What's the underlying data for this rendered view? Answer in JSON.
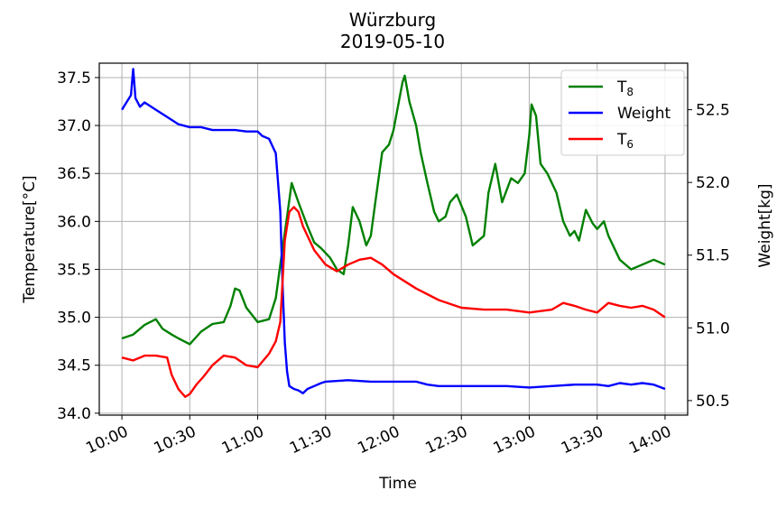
{
  "chart_data": {
    "type": "line",
    "title": "Würzburg",
    "subtitle": "2019-05-10",
    "xlabel": "Time",
    "ylabel_left": "Temperature[°C]",
    "ylabel_right": "Weight[kg]",
    "x_ticks": [
      "10:00",
      "10:30",
      "11:00",
      "11:30",
      "12:00",
      "12:30",
      "13:00",
      "13:30",
      "14:00"
    ],
    "xlim_minutes_after_10_00": [
      -10,
      250
    ],
    "ylim_left": [
      33.98,
      37.65
    ],
    "ylim_right": [
      50.4,
      52.82
    ],
    "y_ticks_left": [
      "34.0",
      "34.5",
      "35.0",
      "35.5",
      "36.0",
      "36.5",
      "37.0",
      "37.5"
    ],
    "y_ticks_right": [
      "50.5",
      "51.0",
      "51.5",
      "52.0",
      "52.5"
    ],
    "grid": true,
    "legend_position": "top-right",
    "series": [
      {
        "name": "T",
        "subscript": "8",
        "color": "#008000",
        "axis": "left",
        "x": [
          "10:00",
          "10:05",
          "10:10",
          "10:15",
          "10:18",
          "10:22",
          "10:25",
          "10:30",
          "10:35",
          "10:40",
          "10:45",
          "10:48",
          "10:50",
          "10:52",
          "10:55",
          "11:00",
          "11:05",
          "11:08",
          "11:10",
          "11:13",
          "11:15",
          "11:18",
          "11:22",
          "11:25",
          "11:28",
          "11:32",
          "11:35",
          "11:38",
          "11:40",
          "11:42",
          "11:45",
          "11:48",
          "11:50",
          "11:52",
          "11:55",
          "11:58",
          "12:00",
          "12:02",
          "12:04",
          "12:05",
          "12:07",
          "12:10",
          "12:12",
          "12:15",
          "12:18",
          "12:20",
          "12:23",
          "12:25",
          "12:28",
          "12:32",
          "12:35",
          "12:40",
          "12:42",
          "12:45",
          "12:48",
          "12:52",
          "12:55",
          "12:58",
          "13:00",
          "13:01",
          "13:03",
          "13:05",
          "13:08",
          "13:12",
          "13:15",
          "13:18",
          "13:20",
          "13:22",
          "13:25",
          "13:28",
          "13:30",
          "13:33",
          "13:35",
          "13:40",
          "13:45",
          "13:50",
          "13:55",
          "14:00"
        ],
        "values": [
          34.78,
          34.82,
          34.92,
          34.98,
          34.88,
          34.82,
          34.78,
          34.72,
          34.85,
          34.93,
          34.95,
          35.12,
          35.3,
          35.28,
          35.1,
          34.95,
          34.98,
          35.2,
          35.55,
          36.05,
          36.4,
          36.2,
          35.95,
          35.78,
          35.72,
          35.62,
          35.5,
          35.45,
          35.75,
          36.15,
          36.0,
          35.75,
          35.85,
          36.2,
          36.72,
          36.8,
          36.95,
          37.2,
          37.45,
          37.52,
          37.25,
          37.0,
          36.72,
          36.4,
          36.1,
          36.0,
          36.05,
          36.2,
          36.28,
          36.05,
          35.75,
          35.85,
          36.3,
          36.6,
          36.2,
          36.45,
          36.4,
          36.5,
          36.9,
          37.22,
          37.1,
          36.6,
          36.5,
          36.3,
          36.0,
          35.85,
          35.9,
          35.8,
          36.12,
          35.98,
          35.92,
          36.0,
          35.85,
          35.6,
          35.5,
          35.55,
          35.6,
          35.55
        ]
      },
      {
        "name": "Weight",
        "color": "#0000ff",
        "axis": "right",
        "x": [
          "10:00",
          "10:02",
          "10:04",
          "10:05",
          "10:06",
          "10:07",
          "10:08",
          "10:10",
          "10:15",
          "10:20",
          "10:25",
          "10:30",
          "10:35",
          "10:40",
          "10:45",
          "10:50",
          "10:55",
          "11:00",
          "11:02",
          "11:05",
          "11:08",
          "11:10",
          "11:11",
          "11:12",
          "11:13",
          "11:14",
          "11:16",
          "11:18",
          "11:20",
          "11:22",
          "11:25",
          "11:28",
          "11:30",
          "11:40",
          "11:50",
          "12:00",
          "12:10",
          "12:15",
          "12:20",
          "12:25",
          "12:30",
          "12:40",
          "12:50",
          "13:00",
          "13:10",
          "13:20",
          "13:30",
          "13:35",
          "13:40",
          "13:45",
          "13:50",
          "13:55",
          "14:00"
        ],
        "values": [
          52.5,
          52.55,
          52.6,
          52.78,
          52.58,
          52.55,
          52.52,
          52.55,
          52.5,
          52.45,
          52.4,
          52.38,
          52.38,
          52.36,
          52.36,
          52.36,
          52.35,
          52.35,
          52.32,
          52.3,
          52.2,
          51.8,
          51.3,
          50.9,
          50.7,
          50.6,
          50.58,
          50.57,
          50.55,
          50.58,
          50.6,
          50.62,
          50.63,
          50.64,
          50.63,
          50.63,
          50.63,
          50.61,
          50.6,
          50.6,
          50.6,
          50.6,
          50.6,
          50.59,
          50.6,
          50.61,
          50.61,
          50.6,
          50.62,
          50.61,
          50.62,
          50.61,
          50.58
        ]
      },
      {
        "name": "T",
        "subscript": "6",
        "color": "#ff0000",
        "axis": "left",
        "x": [
          "10:00",
          "10:05",
          "10:10",
          "10:15",
          "10:20",
          "10:22",
          "10:25",
          "10:28",
          "10:30",
          "10:33",
          "10:36",
          "10:40",
          "10:45",
          "10:50",
          "10:55",
          "11:00",
          "11:05",
          "11:08",
          "11:10",
          "11:12",
          "11:14",
          "11:16",
          "11:18",
          "11:20",
          "11:25",
          "11:30",
          "11:35",
          "11:40",
          "11:45",
          "11:50",
          "11:55",
          "12:00",
          "12:10",
          "12:20",
          "12:30",
          "12:40",
          "12:50",
          "13:00",
          "13:10",
          "13:15",
          "13:20",
          "13:25",
          "13:30",
          "13:35",
          "13:40",
          "13:45",
          "13:50",
          "13:55",
          "14:00"
        ],
        "values": [
          34.58,
          34.55,
          34.6,
          34.6,
          34.58,
          34.4,
          34.25,
          34.17,
          34.2,
          34.3,
          34.38,
          34.5,
          34.6,
          34.58,
          34.5,
          34.48,
          34.62,
          34.75,
          34.95,
          35.8,
          36.1,
          36.15,
          36.1,
          35.95,
          35.7,
          35.55,
          35.48,
          35.55,
          35.6,
          35.62,
          35.55,
          35.45,
          35.3,
          35.18,
          35.1,
          35.08,
          35.08,
          35.05,
          35.08,
          35.15,
          35.12,
          35.08,
          35.05,
          35.15,
          35.12,
          35.1,
          35.12,
          35.08,
          35.0
        ]
      }
    ]
  }
}
